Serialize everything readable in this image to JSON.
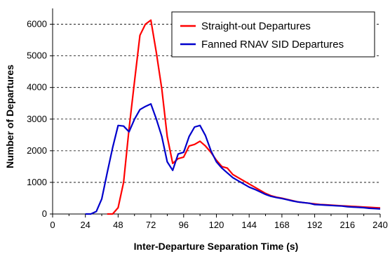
{
  "chart_data": {
    "type": "line",
    "title": "",
    "xlabel": "Inter-Departure Separation Time (s)",
    "ylabel": "Number of Departures",
    "xlim": [
      0,
      240
    ],
    "ylim": [
      0,
      6500
    ],
    "x_ticks": [
      0,
      24,
      48,
      72,
      96,
      120,
      144,
      168,
      192,
      216,
      240
    ],
    "x_tick_labels": [
      "0",
      "24",
      "48",
      "72",
      "96",
      "120",
      "144",
      "168",
      "192",
      "216",
      "240"
    ],
    "y_ticks": [
      0,
      1000,
      2000,
      3000,
      4000,
      5000,
      6000
    ],
    "y_tick_labels": [
      "0",
      "1000",
      "2000",
      "3000",
      "4000",
      "5000",
      "6000"
    ],
    "grid": "horizontal dashed",
    "legend_position": "top-right",
    "series": [
      {
        "name": "Straight-out Departures",
        "color": "#ff0000",
        "x": [
          40,
          44,
          48,
          52,
          56,
          60,
          64,
          68,
          72,
          76,
          80,
          84,
          88,
          92,
          96,
          100,
          104,
          108,
          112,
          116,
          120,
          124,
          128,
          132,
          136,
          140,
          144,
          148,
          152,
          156,
          160,
          164,
          168,
          172,
          176,
          180,
          184,
          188,
          192,
          196,
          200,
          204,
          208,
          212,
          216,
          220,
          224,
          228,
          232,
          236,
          240
        ],
        "values": [
          0,
          0,
          200,
          1000,
          2700,
          4200,
          5650,
          6000,
          6130,
          5100,
          3950,
          2450,
          1600,
          1750,
          1800,
          2150,
          2200,
          2300,
          2150,
          1950,
          1700,
          1500,
          1450,
          1250,
          1150,
          1050,
          950,
          850,
          750,
          650,
          580,
          530,
          500,
          460,
          420,
          380,
          360,
          340,
          320,
          300,
          290,
          280,
          270,
          260,
          250,
          240,
          230,
          220,
          210,
          200,
          190
        ]
      },
      {
        "name": "Fanned RNAV SID Departures",
        "color": "#0000cc",
        "x": [
          24,
          28,
          32,
          36,
          40,
          44,
          48,
          52,
          56,
          60,
          64,
          68,
          72,
          76,
          80,
          84,
          88,
          92,
          96,
          100,
          104,
          108,
          112,
          116,
          120,
          124,
          128,
          132,
          136,
          140,
          144,
          148,
          152,
          156,
          160,
          164,
          168,
          172,
          176,
          180,
          184,
          188,
          192,
          196,
          200,
          204,
          208,
          212,
          216,
          220,
          224,
          228,
          232,
          236,
          240
        ],
        "values": [
          0,
          0,
          80,
          480,
          1300,
          2100,
          2800,
          2780,
          2600,
          3000,
          3300,
          3400,
          3480,
          3000,
          2450,
          1650,
          1380,
          1900,
          1950,
          2450,
          2750,
          2800,
          2480,
          2000,
          1650,
          1450,
          1300,
          1150,
          1050,
          950,
          850,
          780,
          700,
          620,
          560,
          520,
          490,
          450,
          410,
          380,
          360,
          340,
          300,
          290,
          280,
          270,
          260,
          250,
          230,
          220,
          210,
          200,
          180,
          170,
          160
        ]
      }
    ]
  }
}
